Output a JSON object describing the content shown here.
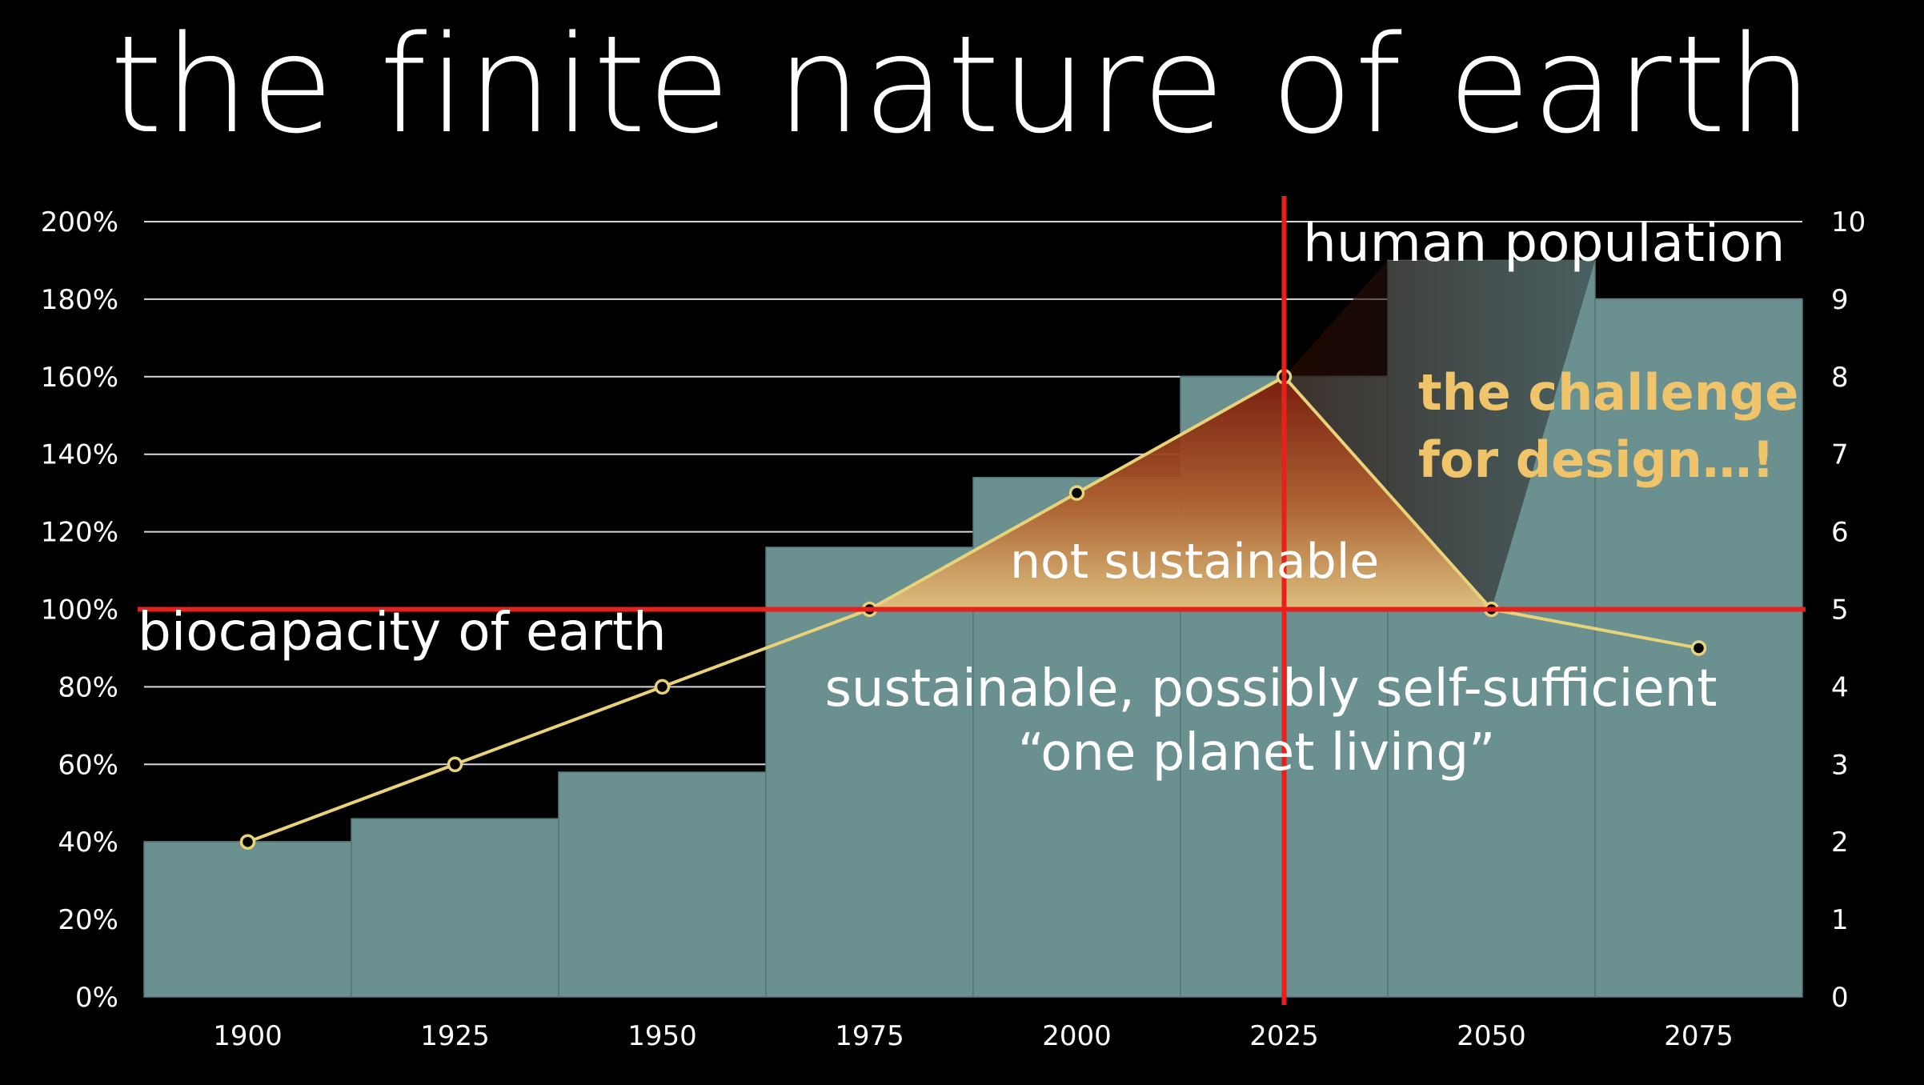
{
  "chart_data": {
    "type": "bar",
    "title": "the finite nature of earth",
    "x": [
      1900,
      1925,
      1950,
      1975,
      2000,
      2025,
      2050,
      2075
    ],
    "series": [
      {
        "axis": "right",
        "kind": "bar",
        "values": [
          2.0,
          2.3,
          2.9,
          5.8,
          6.7,
          8.0,
          9.5,
          9.0
        ],
        "color": "#6b9090"
      },
      {
        "axis": "left",
        "kind": "line",
        "values": [
          40,
          60,
          80,
          100,
          130,
          160,
          100,
          90
        ],
        "color": "#e8d27a"
      }
    ],
    "y_left": {
      "ticks": [
        "0%",
        "20%",
        "40%",
        "60%",
        "80%",
        "100%",
        "120%",
        "140%",
        "160%",
        "180%",
        "200%"
      ],
      "range": [
        0,
        200
      ]
    },
    "y_right": {
      "ticks": [
        "0",
        "1",
        "2",
        "3",
        "4",
        "5",
        "6",
        "7",
        "8",
        "9",
        "10"
      ],
      "range": [
        0,
        10
      ]
    },
    "x_tick_labels": [
      "1900",
      "1925",
      "1950",
      "1975",
      "2000",
      "2025",
      "2050",
      "2075"
    ],
    "reference_line": {
      "axis": "left",
      "value": 100,
      "color": "#e8201c"
    },
    "reference_vline": {
      "x": 2025,
      "color": "#e8201c"
    },
    "annotations": {
      "human_population": "human population",
      "biocapacity": "biocapacity of earth",
      "not_sustainable": "not sustainable",
      "sustainable_line1": "sustainable, possibly self-sufficient",
      "sustainable_line2": "“one planet living”",
      "challenge_line1": "the challenge",
      "challenge_line2": "for design…!"
    },
    "grid": true
  }
}
